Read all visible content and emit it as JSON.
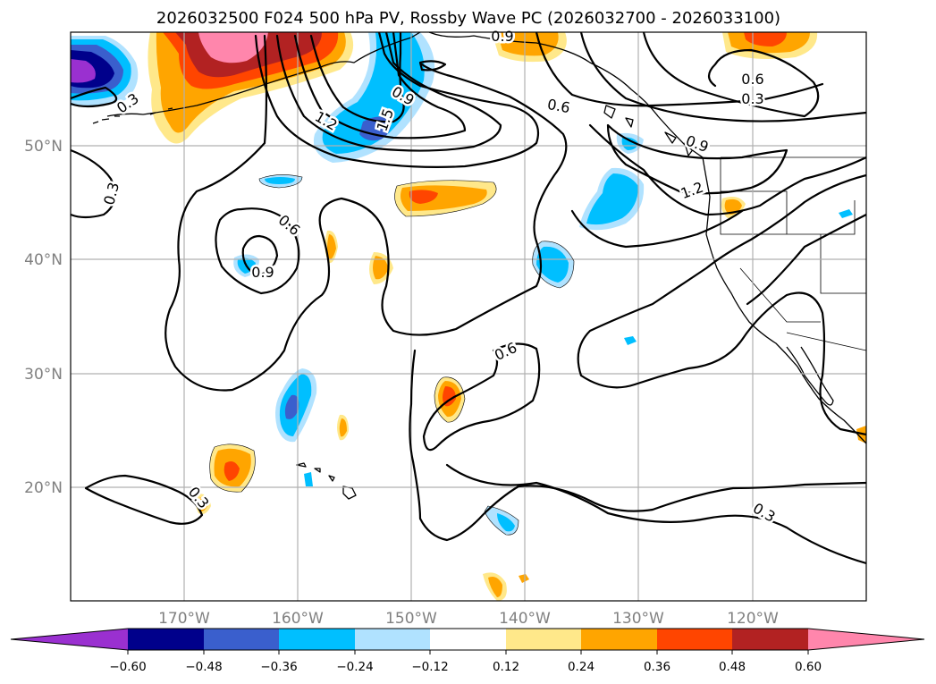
{
  "title": "2026032500 F024 500 hPa PV, Rossby Wave PC (2026032700 - 2026033100)",
  "colors": {
    "neg_060": "#9a30d0",
    "neg_048": "#00008b",
    "neg_036": "#3a5fcd",
    "neg_024": "#00bfff",
    "neg_012": "#b0e2ff",
    "zero": "#ffffff",
    "pos_012": "#ffe88a",
    "pos_024": "#ffa500",
    "pos_036": "#ff4500",
    "pos_048": "#b22222",
    "pos_060": "#ff86ac"
  },
  "chart_data": {
    "type": "contour_map",
    "projection": "PlateCarree",
    "lon_range": [
      -180,
      -110
    ],
    "lat_range": [
      10,
      60
    ],
    "gridlines": true,
    "lon_ticks": [
      "170°W",
      "160°W",
      "150°W",
      "140°W",
      "130°W",
      "120°W"
    ],
    "lat_ticks": [
      "50°N",
      "40°N",
      "30°N",
      "20°N"
    ],
    "colorbar": {
      "orientation": "horizontal",
      "extend": "both",
      "levels": [
        -0.6,
        -0.48,
        -0.36,
        -0.24,
        -0.12,
        0.12,
        0.24,
        0.36,
        0.48,
        0.6
      ],
      "tick_labels": [
        "−0.60",
        "−0.48",
        "−0.36",
        "−0.24",
        "−0.12",
        "0.12",
        "0.24",
        "0.36",
        "0.48",
        "0.60"
      ]
    },
    "contour_labels": [
      "0.3",
      "0.3",
      "0.3",
      "0.3",
      "0.3",
      "0.6",
      "0.6",
      "0.6",
      "0.6",
      "0.9",
      "0.9",
      "0.9",
      "0.9",
      "1.2",
      "1.2",
      "1.5"
    ]
  }
}
